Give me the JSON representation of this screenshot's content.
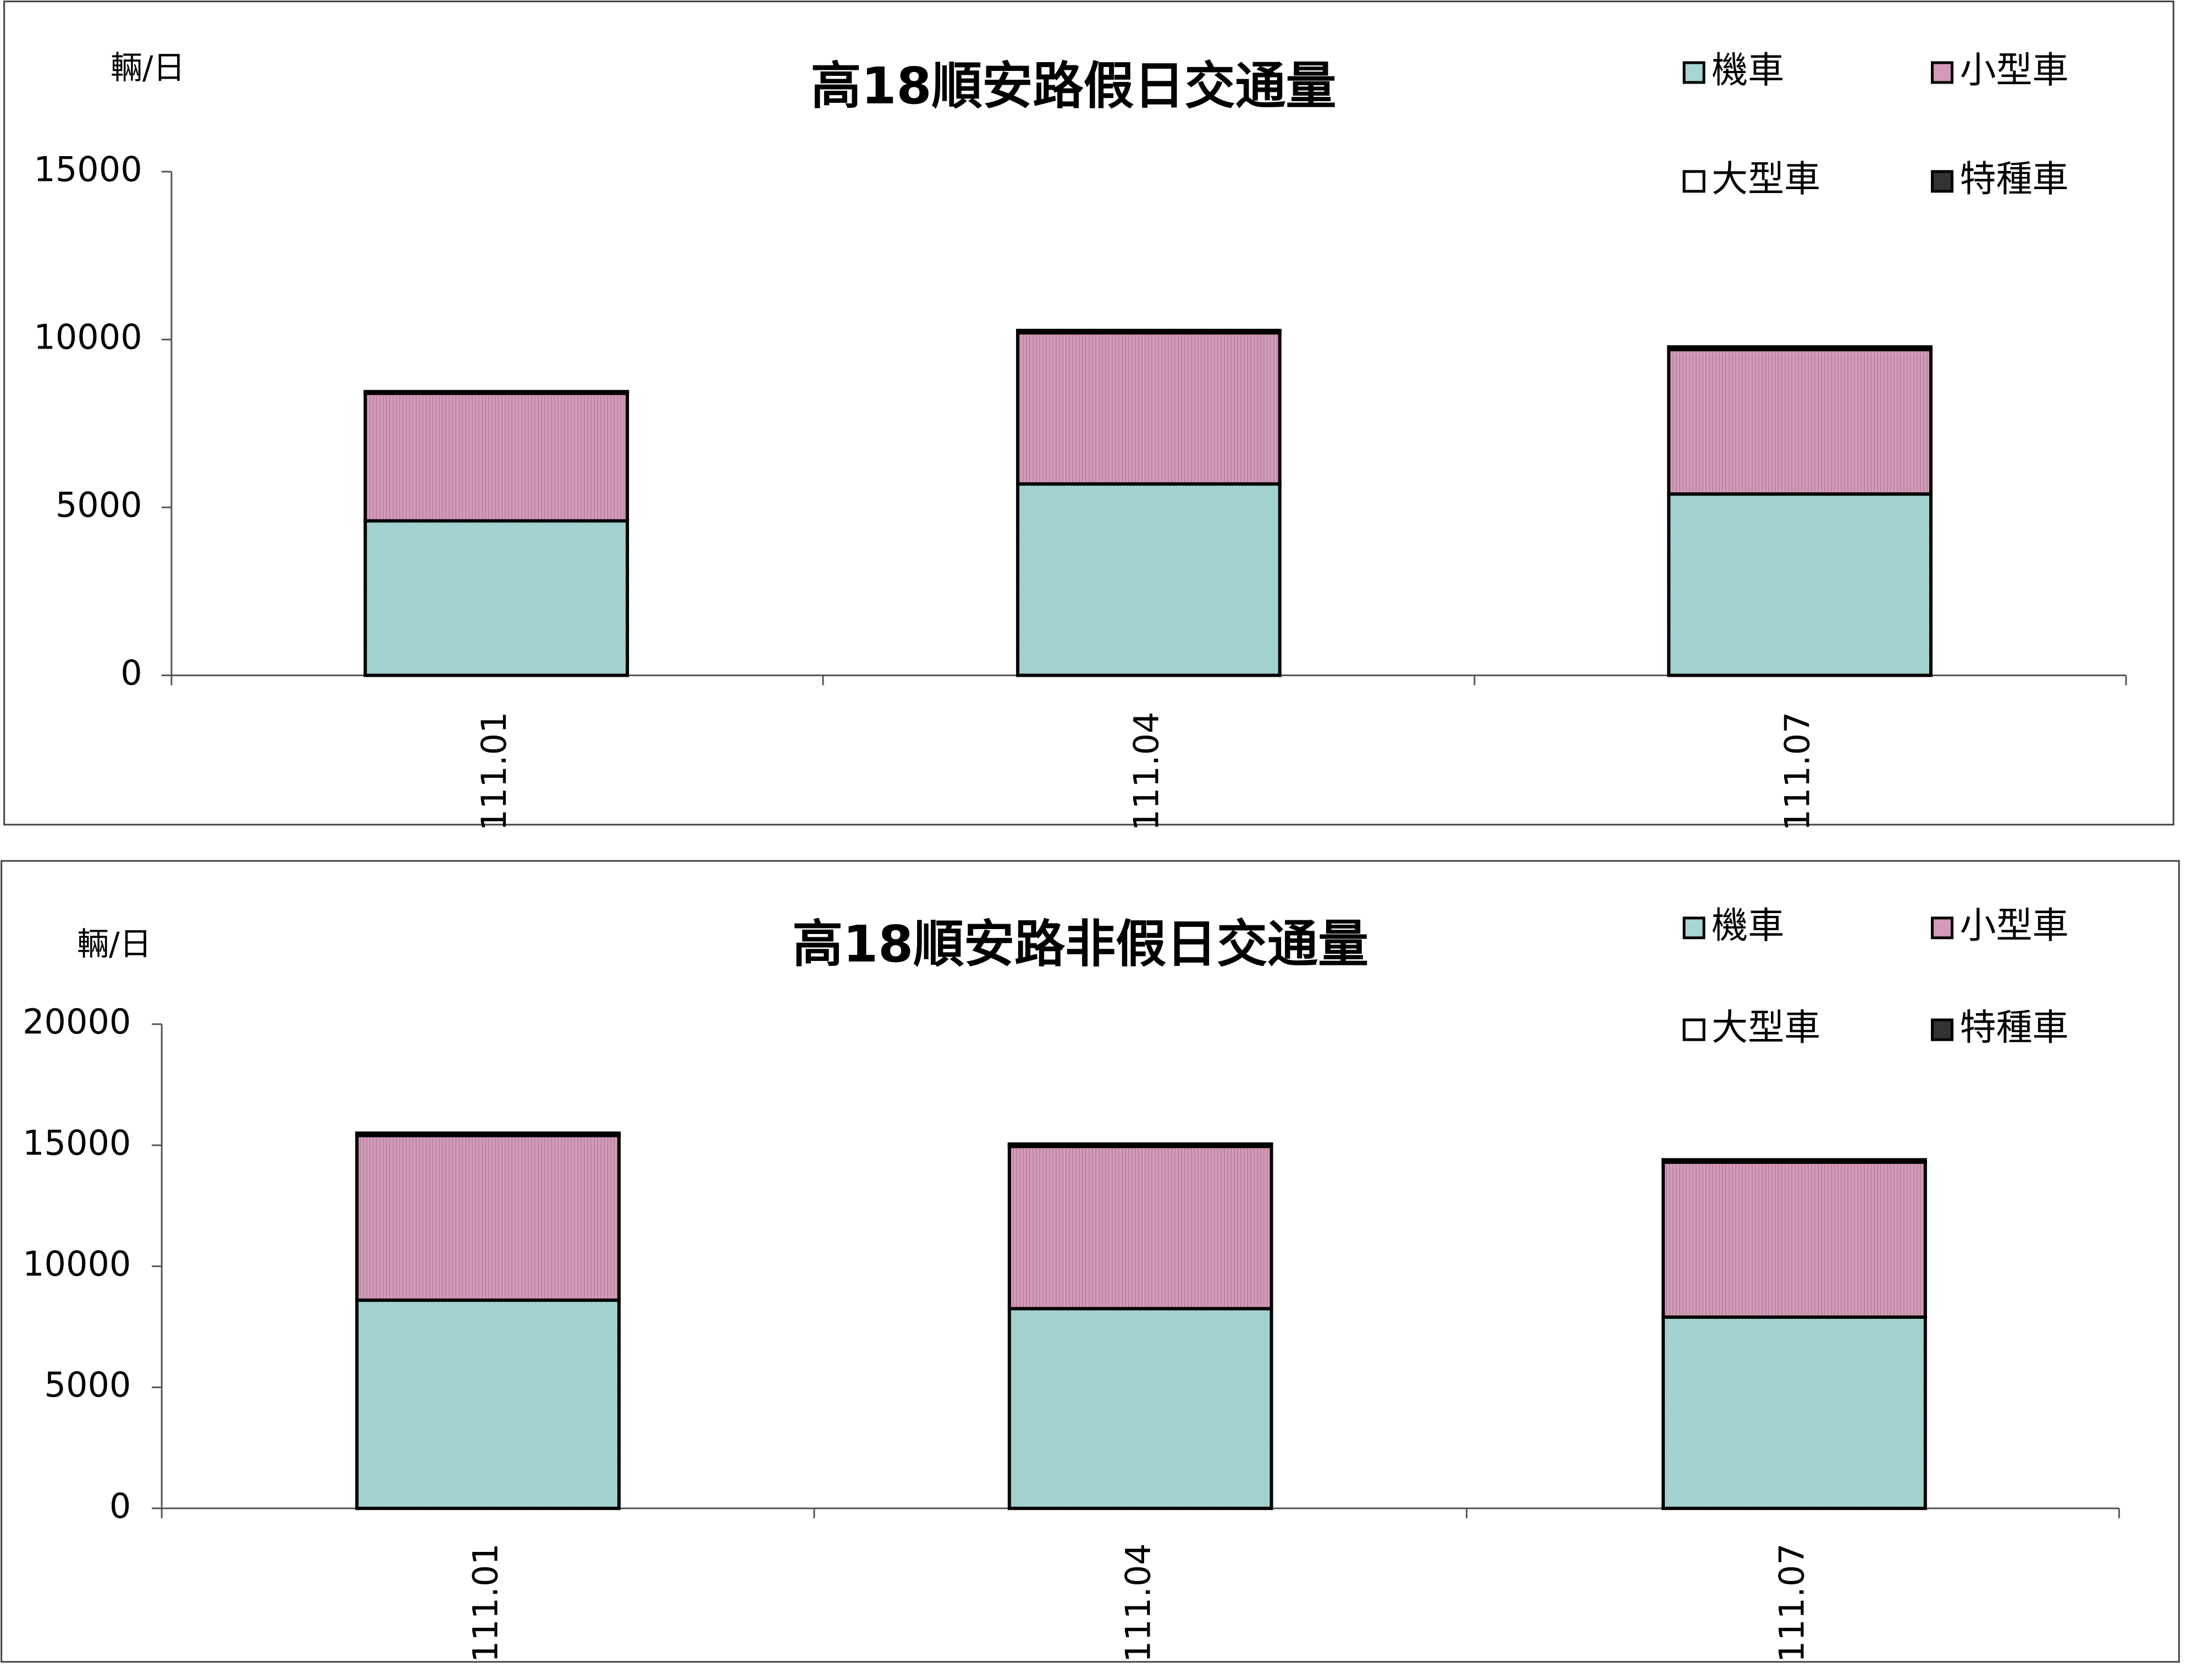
{
  "colors": {
    "motorcycle": "#a6d5d2",
    "small_car": "#d19bb8",
    "large_car": "#ffffff",
    "special_car": "#333333",
    "frame": "#000000",
    "background": "#ffffff"
  },
  "chart_data": [
    {
      "type": "bar",
      "stacked": true,
      "title": "高18順安路假日交通量",
      "ylabel": "輛/日",
      "xlabel": "",
      "ylim": [
        0,
        15000
      ],
      "yticks": [
        0,
        5000,
        10000,
        15000
      ],
      "categories": [
        "111.01",
        "111.04",
        "111.07"
      ],
      "legend_position": "top-right",
      "grid": false,
      "series": [
        {
          "name": "機車",
          "values": [
            4600,
            5700,
            5400
          ],
          "color": "#a6d5d2"
        },
        {
          "name": "小型車",
          "values": [
            3800,
            4500,
            4300
          ],
          "color": "#d19bb8"
        },
        {
          "name": "大型車",
          "values": [
            30,
            40,
            40
          ],
          "color": "#ffffff"
        },
        {
          "name": "特種車",
          "values": [
            20,
            30,
            40
          ],
          "color": "#333333"
        }
      ]
    },
    {
      "type": "bar",
      "stacked": true,
      "title": "高18順安路非假日交通量",
      "ylabel": "輛/日",
      "xlabel": "",
      "ylim": [
        0,
        20000
      ],
      "yticks": [
        0,
        5000,
        10000,
        15000,
        20000
      ],
      "categories": [
        "111.01",
        "111.04",
        "111.07"
      ],
      "legend_position": "top-right",
      "grid": false,
      "series": [
        {
          "name": "機車",
          "values": [
            8600,
            8250,
            7900
          ],
          "color": "#a6d5d2"
        },
        {
          "name": "小型車",
          "values": [
            6800,
            6700,
            6400
          ],
          "color": "#d19bb8"
        },
        {
          "name": "大型車",
          "values": [
            60,
            60,
            60
          ],
          "color": "#ffffff"
        },
        {
          "name": "特種車",
          "values": [
            40,
            40,
            40
          ],
          "color": "#333333"
        }
      ]
    }
  ]
}
